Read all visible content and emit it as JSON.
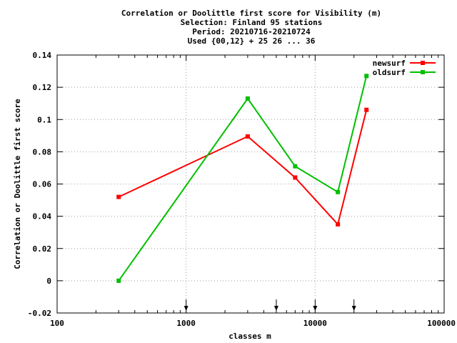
{
  "chart_data": {
    "type": "line",
    "title_lines": [
      "Correlation or Doolittle first score  for Visibility (m)",
      "Selection: Finland     95 stations",
      "Period: 20210716-20210724",
      "Used {00,12} + 25 26 ... 36"
    ],
    "xlabel": "classes m",
    "ylabel": "Correlation or Doolittle first score",
    "x_scale": "log",
    "xlim": [
      100,
      100000
    ],
    "ylim": [
      -0.02,
      0.14
    ],
    "x_ticks": [
      100,
      1000,
      10000,
      100000
    ],
    "x_tick_labels": [
      "100",
      "1000",
      "10000",
      "100000"
    ],
    "y_ticks": [
      -0.02,
      0,
      0.02,
      0.04,
      0.06,
      0.08,
      0.1,
      0.12,
      0.14
    ],
    "y_tick_labels": [
      "-0.02",
      "0",
      "0.02",
      "0.04",
      "0.06",
      "0.08",
      "0.1",
      "0.12",
      "0.14"
    ],
    "grid": true,
    "legend_position": "top-right",
    "arrow_markers_x": [
      1000,
      5000,
      10000,
      20000
    ],
    "series": [
      {
        "name": "newsurf",
        "color": "#ff0000",
        "x": [
          300,
          3000,
          7000,
          15000,
          25000
        ],
        "y": [
          0.052,
          0.0895,
          0.064,
          0.035,
          0.106
        ]
      },
      {
        "name": "oldsurf",
        "color": "#00c000",
        "x": [
          300,
          3000,
          7000,
          15000,
          25000
        ],
        "y": [
          0.0,
          0.113,
          0.071,
          0.055,
          0.127
        ]
      }
    ]
  }
}
